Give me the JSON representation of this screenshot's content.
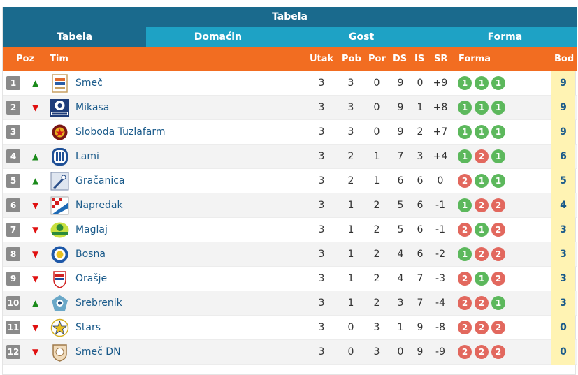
{
  "title": "Tabela",
  "tabs": [
    "Tabela",
    "Domaćin",
    "Gost",
    "Forma"
  ],
  "headers": {
    "poz": "Poz",
    "tim": "Tim",
    "utak": "Utak",
    "pob": "Pob",
    "por": "Por",
    "ds": "DS",
    "is": "IS",
    "sr": "SR",
    "forma": "Forma",
    "bod": "Bod"
  },
  "colors": {
    "title_bg": "#1a6a8d",
    "tab_bg": "#1ea2c5",
    "header_bg": "#f26d21",
    "win": "#5cb85c",
    "loss": "#e2685e",
    "points_bg": "#fff3b3"
  },
  "rows": [
    {
      "pos": "1",
      "trend": "up",
      "logo": "smec-logo",
      "name": "Smeč",
      "utak": "3",
      "pob": "3",
      "por": "0",
      "ds": "9",
      "is": "0",
      "sr": "+9",
      "forma": [
        "1",
        "1",
        "1"
      ],
      "bod": "9"
    },
    {
      "pos": "2",
      "trend": "down",
      "logo": "mikasa-logo",
      "name": "Mikasa",
      "utak": "3",
      "pob": "3",
      "por": "0",
      "ds": "9",
      "is": "1",
      "sr": "+8",
      "forma": [
        "1",
        "1",
        "1"
      ],
      "bod": "9"
    },
    {
      "pos": "3",
      "trend": "none",
      "logo": "sloboda-logo",
      "name": "Sloboda Tuzlafarm",
      "utak": "3",
      "pob": "3",
      "por": "0",
      "ds": "9",
      "is": "2",
      "sr": "+7",
      "forma": [
        "1",
        "1",
        "1"
      ],
      "bod": "9"
    },
    {
      "pos": "4",
      "trend": "up",
      "logo": "lami-logo",
      "name": "Lami",
      "utak": "3",
      "pob": "2",
      "por": "1",
      "ds": "7",
      "is": "3",
      "sr": "+4",
      "forma": [
        "1",
        "2",
        "1"
      ],
      "bod": "6"
    },
    {
      "pos": "5",
      "trend": "up",
      "logo": "gracanica-logo",
      "name": "Gračanica",
      "utak": "3",
      "pob": "2",
      "por": "1",
      "ds": "6",
      "is": "6",
      "sr": "0",
      "forma": [
        "2",
        "1",
        "1"
      ],
      "bod": "5"
    },
    {
      "pos": "6",
      "trend": "down",
      "logo": "napredak-logo",
      "name": "Napredak",
      "utak": "3",
      "pob": "1",
      "por": "2",
      "ds": "5",
      "is": "6",
      "sr": "-1",
      "forma": [
        "1",
        "2",
        "2"
      ],
      "bod": "4"
    },
    {
      "pos": "7",
      "trend": "down",
      "logo": "maglaj-logo",
      "name": "Maglaj",
      "utak": "3",
      "pob": "1",
      "por": "2",
      "ds": "5",
      "is": "6",
      "sr": "-1",
      "forma": [
        "2",
        "1",
        "2"
      ],
      "bod": "3"
    },
    {
      "pos": "8",
      "trend": "down",
      "logo": "bosna-logo",
      "name": "Bosna",
      "utak": "3",
      "pob": "1",
      "por": "2",
      "ds": "4",
      "is": "6",
      "sr": "-2",
      "forma": [
        "1",
        "2",
        "2"
      ],
      "bod": "3"
    },
    {
      "pos": "9",
      "trend": "down",
      "logo": "orasje-logo",
      "name": "Orašje",
      "utak": "3",
      "pob": "1",
      "por": "2",
      "ds": "4",
      "is": "7",
      "sr": "-3",
      "forma": [
        "2",
        "1",
        "2"
      ],
      "bod": "3"
    },
    {
      "pos": "10",
      "trend": "up",
      "logo": "srebrenik-logo",
      "name": "Srebrenik",
      "utak": "3",
      "pob": "1",
      "por": "2",
      "ds": "3",
      "is": "7",
      "sr": "-4",
      "forma": [
        "2",
        "2",
        "1"
      ],
      "bod": "3"
    },
    {
      "pos": "11",
      "trend": "down",
      "logo": "stars-logo",
      "name": "Stars",
      "utak": "3",
      "pob": "0",
      "por": "3",
      "ds": "1",
      "is": "9",
      "sr": "-8",
      "forma": [
        "2",
        "2",
        "2"
      ],
      "bod": "0"
    },
    {
      "pos": "12",
      "trend": "down",
      "logo": "smec-dn-logo",
      "name": "Smeč DN",
      "utak": "3",
      "pob": "0",
      "por": "3",
      "ds": "0",
      "is": "9",
      "sr": "-9",
      "forma": [
        "2",
        "2",
        "2"
      ],
      "bod": "0"
    }
  ]
}
